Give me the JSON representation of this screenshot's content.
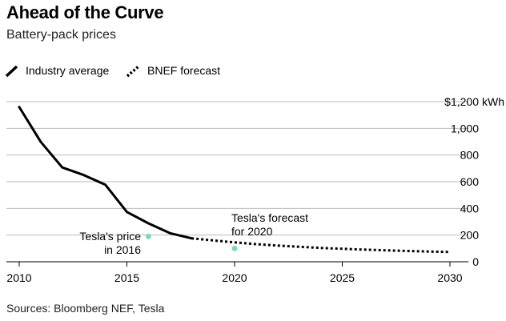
{
  "title": "Ahead of the Curve",
  "subtitle": "Battery-pack prices",
  "source": "Sources: Bloomberg NEF, Tesla",
  "legend": [
    {
      "label": "Industry average",
      "style": "solid"
    },
    {
      "label": "BNEF forecast",
      "style": "dotted"
    }
  ],
  "annotations": {
    "tesla_2016": [
      "Tesla's price",
      "in 2016"
    ],
    "tesla_2020": [
      "Tesla's forecast",
      "for 2020"
    ]
  },
  "colors": {
    "line": "#000000",
    "tesla_point": "#7fd9b2",
    "grid": "#bbbbbb"
  },
  "chart_data": {
    "type": "line",
    "title": "Ahead of the Curve",
    "subtitle": "Battery-pack prices",
    "y_unit_label": "kWh",
    "xlim": [
      2010,
      2030
    ],
    "ylim": [
      0,
      1200
    ],
    "x_ticks": [
      "2010",
      "2015",
      "2020",
      "2025",
      "2030"
    ],
    "y_ticks": [
      "$1,200",
      "1,000",
      "800",
      "600",
      "400",
      "200",
      "0"
    ],
    "grid": true,
    "legend_position": "top-left",
    "series": [
      {
        "name": "Industry average",
        "style": "solid",
        "x": [
          2010,
          2011,
          2012,
          2013,
          2014,
          2015,
          2016,
          2017,
          2018
        ],
        "y": [
          1160,
          899,
          707,
          650,
          577,
          373,
          288,
          214,
          176
        ]
      },
      {
        "name": "BNEF forecast",
        "style": "dotted",
        "x": [
          2018,
          2019,
          2020,
          2021,
          2022,
          2023,
          2024,
          2025,
          2026,
          2027,
          2028,
          2029,
          2030
        ],
        "y": [
          176,
          160,
          145,
          132,
          121,
          112,
          104,
          97,
          91,
          86,
          81,
          77,
          73
        ]
      }
    ],
    "points": [
      {
        "label": "Tesla's price in 2016",
        "x": 2016,
        "y": 190
      },
      {
        "label": "Tesla's forecast for 2020",
        "x": 2020,
        "y": 100
      }
    ]
  }
}
